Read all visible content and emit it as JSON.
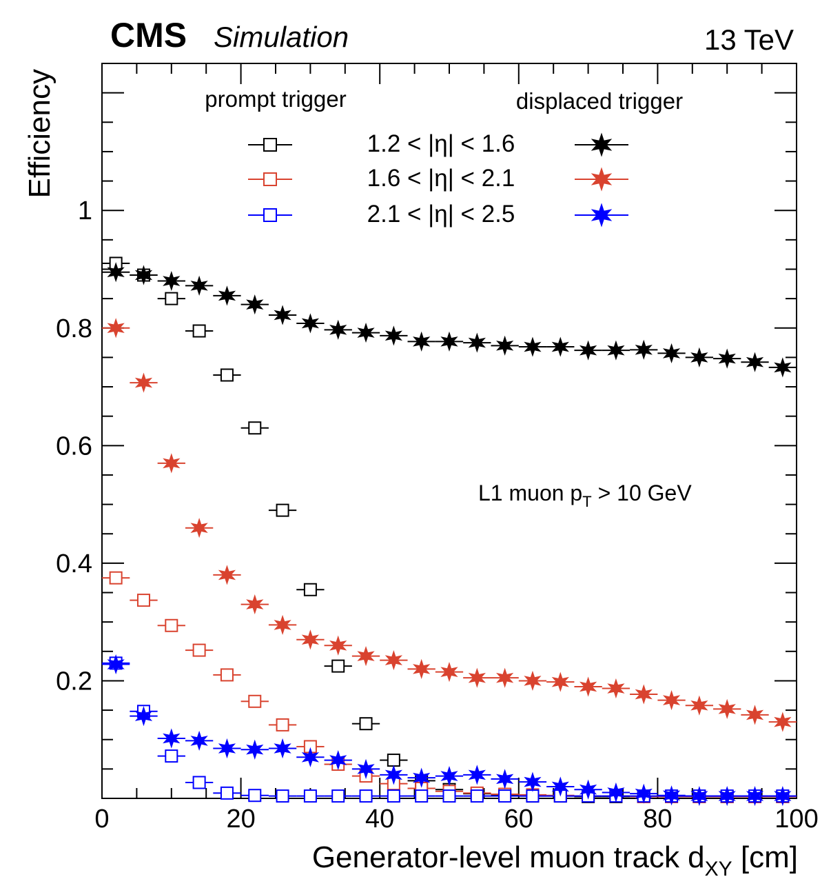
{
  "header": {
    "experiment": "CMS",
    "subtitle": "Simulation",
    "energy": "13 TeV"
  },
  "annotation": {
    "prefix": "L1 muon p",
    "subscript": "T",
    "suffix": " > 10 GeV"
  },
  "legend": {
    "prompt_header": "prompt trigger",
    "displaced_header": "displaced trigger",
    "rows": [
      "1.2 < |η| < 1.6",
      "1.6 < |η| < 2.1",
      "2.1 < |η| < 2.5"
    ]
  },
  "chart_data": {
    "type": "scatter",
    "title": "",
    "xlabel": "Generator-level muon track d",
    "xlabel_subscript": "XY",
    "xlabel_unit": " [cm]",
    "ylabel": "Efficiency",
    "xlim": [
      0,
      100
    ],
    "ylim": [
      0,
      1.25
    ],
    "x_ticks": [
      0,
      20,
      40,
      60,
      80,
      100
    ],
    "x_tick_labels": [
      "0",
      "20",
      "40",
      "60",
      "80",
      "100"
    ],
    "y_ticks": [
      0.2,
      0.4,
      0.6,
      0.8,
      1
    ],
    "y_tick_labels": [
      "0.2",
      "0.4",
      "0.6",
      "0.8",
      "1"
    ],
    "x": [
      2,
      6,
      10,
      14,
      18,
      22,
      26,
      30,
      34,
      38,
      42,
      46,
      50,
      54,
      58,
      62,
      66,
      70,
      74,
      78,
      82,
      86,
      90,
      94,
      98
    ],
    "x_bin_half_width": 2,
    "series": [
      {
        "name": "prompt trigger, 1.2 < |η| < 1.6",
        "trigger": "prompt",
        "color": "#000000",
        "marker": "open-square",
        "values": [
          0.91,
          0.89,
          0.85,
          0.795,
          0.72,
          0.63,
          0.49,
          0.355,
          0.225,
          0.127,
          0.065,
          0.03,
          0.015,
          0.008,
          0.005,
          0.004,
          0.004,
          0.003,
          0.003,
          0.003,
          0.003,
          0.003,
          0.003,
          0.003,
          0.003
        ]
      },
      {
        "name": "prompt trigger, 1.6 < |η| < 2.1",
        "trigger": "prompt",
        "color": "#d9432f",
        "marker": "open-square",
        "values": [
          0.375,
          0.337,
          0.294,
          0.252,
          0.21,
          0.165,
          0.125,
          0.088,
          0.058,
          0.038,
          0.025,
          0.017,
          0.012,
          0.009,
          0.007,
          0.006,
          0.005,
          0.004,
          0.004,
          0.003,
          0.003,
          0.003,
          0.003,
          0.003,
          0.003
        ]
      },
      {
        "name": "prompt trigger, 2.1 < |η| < 2.5",
        "trigger": "prompt",
        "color": "#0000ff",
        "marker": "open-square",
        "values": [
          0.23,
          0.148,
          0.072,
          0.027,
          0.009,
          0.005,
          0.004,
          0.004,
          0.004,
          0.004,
          0.004,
          0.004,
          0.004,
          0.004,
          0.004,
          0.004,
          0.004,
          0.004,
          0.004,
          0.004,
          0.004,
          0.004,
          0.004,
          0.004,
          0.004
        ]
      },
      {
        "name": "displaced trigger, 1.2 < |η| < 1.6",
        "trigger": "displaced",
        "color": "#000000",
        "marker": "star",
        "values": [
          0.895,
          0.89,
          0.88,
          0.872,
          0.855,
          0.84,
          0.822,
          0.808,
          0.797,
          0.792,
          0.787,
          0.777,
          0.777,
          0.775,
          0.77,
          0.768,
          0.768,
          0.762,
          0.762,
          0.763,
          0.757,
          0.75,
          0.748,
          0.742,
          0.733
        ]
      },
      {
        "name": "displaced trigger, 1.6 < |η| < 2.1",
        "trigger": "displaced",
        "color": "#d9432f",
        "marker": "star",
        "values": [
          0.8,
          0.707,
          0.57,
          0.46,
          0.38,
          0.33,
          0.295,
          0.27,
          0.26,
          0.242,
          0.235,
          0.22,
          0.215,
          0.205,
          0.205,
          0.2,
          0.198,
          0.19,
          0.187,
          0.177,
          0.167,
          0.158,
          0.152,
          0.142,
          0.13
        ]
      },
      {
        "name": "displaced trigger, 2.1 < |η| < 2.5",
        "trigger": "displaced",
        "color": "#0000ff",
        "marker": "star",
        "values": [
          0.228,
          0.14,
          0.102,
          0.098,
          0.085,
          0.083,
          0.085,
          0.07,
          0.065,
          0.05,
          0.04,
          0.035,
          0.038,
          0.04,
          0.033,
          0.028,
          0.02,
          0.015,
          0.01,
          0.008,
          0.005,
          0.004,
          0.004,
          0.004,
          0.004
        ]
      }
    ]
  }
}
